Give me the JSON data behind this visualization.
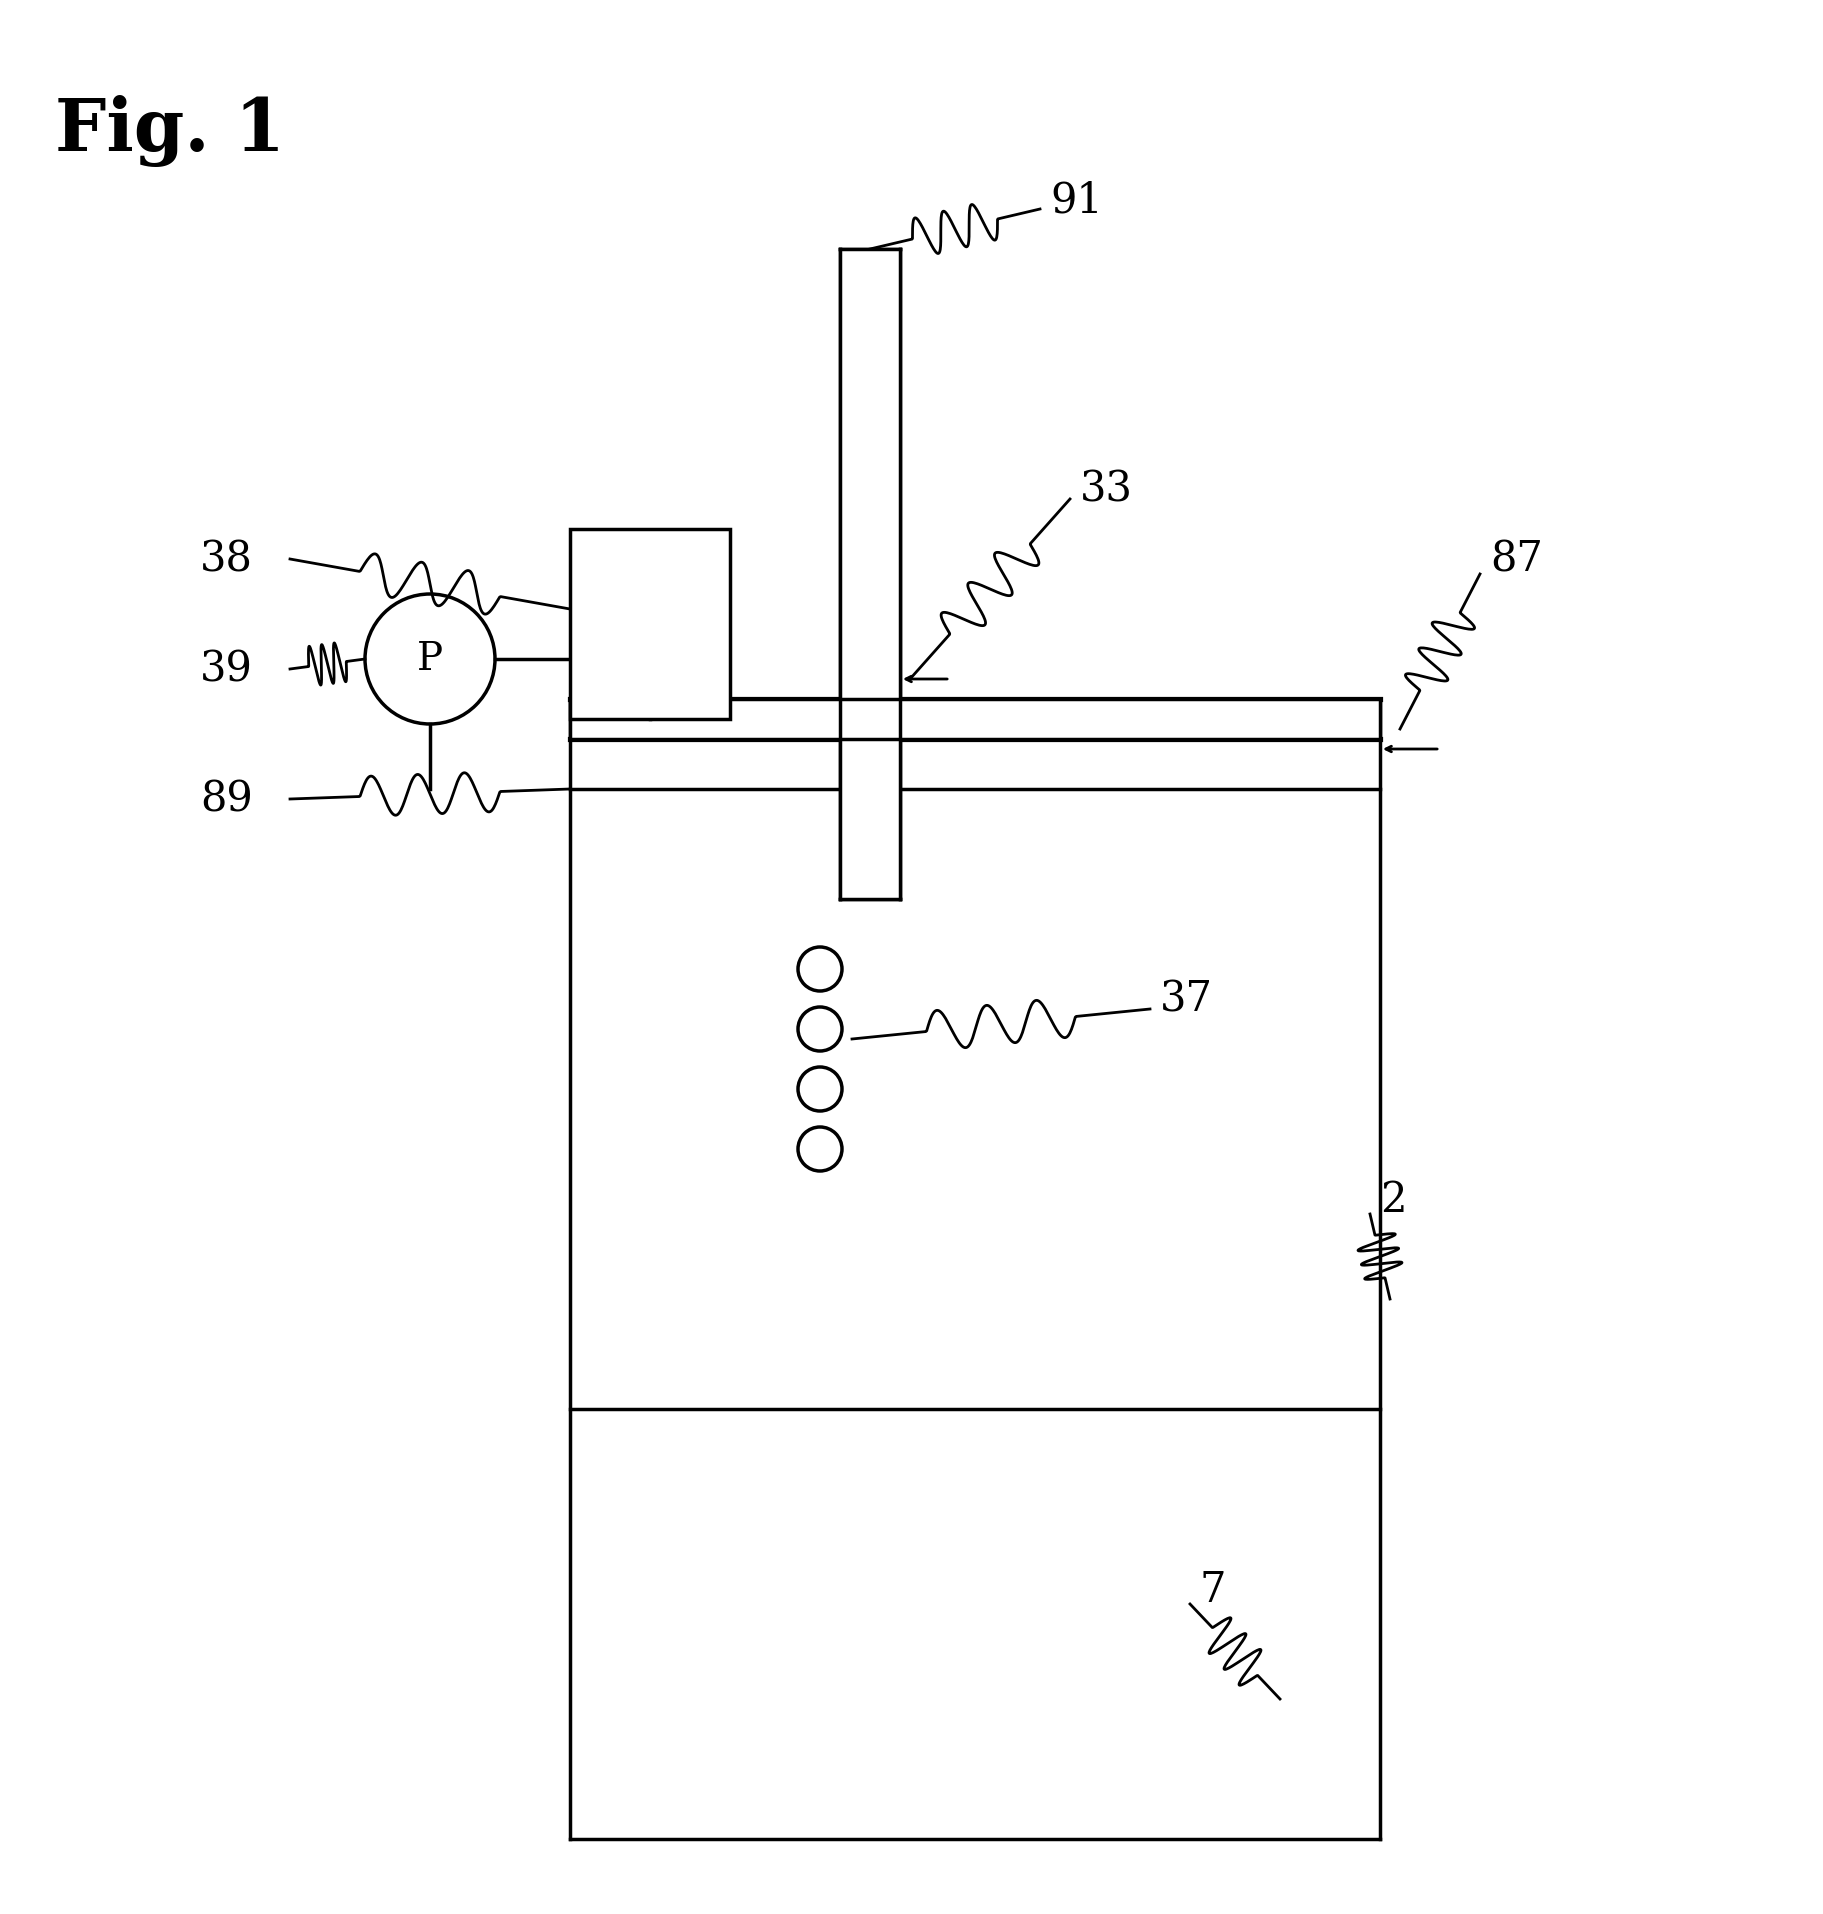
{
  "title": "Fig. 1",
  "bg_color": "#ffffff",
  "line_color": "#000000",
  "fig_width": 18.24,
  "fig_height": 19.15
}
